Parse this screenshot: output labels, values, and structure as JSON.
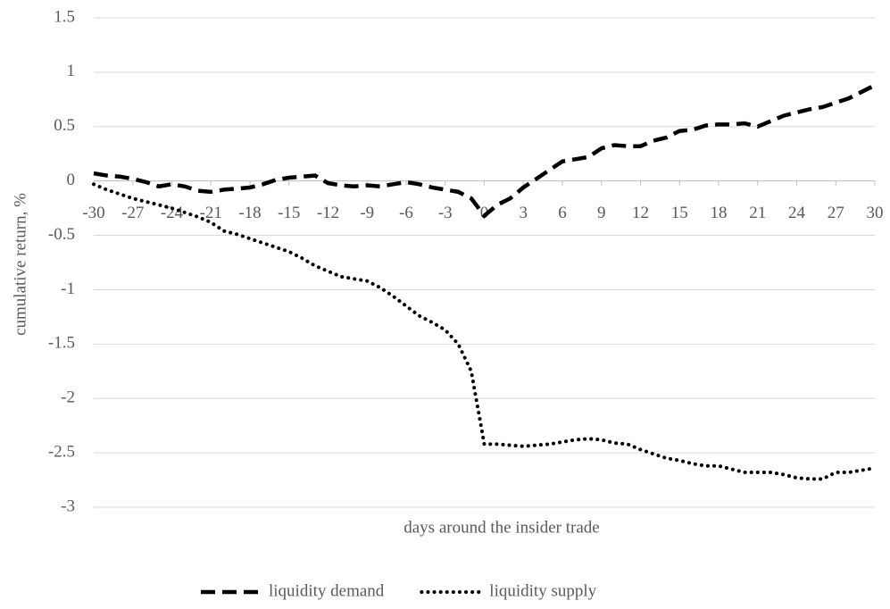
{
  "chart_data": {
    "type": "line",
    "y_label": "cumulative return, %",
    "x_label": "days around the insider trade",
    "x": [
      -30,
      -29,
      -28,
      -27,
      -26,
      -25,
      -24,
      -23,
      -22,
      -21,
      -20,
      -19,
      -18,
      -17,
      -16,
      -15,
      -14,
      -13,
      -12,
      -11,
      -10,
      -9,
      -8,
      -7,
      -6,
      -5,
      -4,
      -3,
      -2,
      -1,
      0,
      1,
      2,
      3,
      4,
      5,
      6,
      7,
      8,
      9,
      10,
      11,
      12,
      13,
      14,
      15,
      16,
      17,
      18,
      19,
      20,
      21,
      22,
      23,
      24,
      25,
      26,
      27,
      28,
      29,
      30
    ],
    "series": [
      {
        "name": "liquidity demand",
        "color": "#000000",
        "dash": "dashed",
        "values": [
          0.07,
          0.05,
          0.04,
          0.02,
          -0.01,
          -0.05,
          -0.03,
          -0.05,
          -0.09,
          -0.1,
          -0.08,
          -0.07,
          -0.06,
          -0.03,
          0.01,
          0.03,
          0.04,
          0.05,
          -0.02,
          -0.04,
          -0.05,
          -0.04,
          -0.05,
          -0.03,
          -0.01,
          -0.03,
          -0.06,
          -0.08,
          -0.1,
          -0.16,
          -0.32,
          -0.22,
          -0.16,
          -0.06,
          0.02,
          0.1,
          0.18,
          0.2,
          0.22,
          0.3,
          0.33,
          0.32,
          0.32,
          0.37,
          0.4,
          0.46,
          0.47,
          0.51,
          0.52,
          0.52,
          0.53,
          0.5,
          0.55,
          0.6,
          0.63,
          0.66,
          0.68,
          0.72,
          0.76,
          0.82,
          0.88
        ]
      },
      {
        "name": "liquidity supply",
        "color": "#000000",
        "dash": "dotted",
        "values": [
          -0.03,
          -0.08,
          -0.12,
          -0.16,
          -0.19,
          -0.22,
          -0.25,
          -0.29,
          -0.33,
          -0.38,
          -0.46,
          -0.49,
          -0.53,
          -0.57,
          -0.61,
          -0.65,
          -0.71,
          -0.78,
          -0.83,
          -0.88,
          -0.9,
          -0.92,
          -0.98,
          -1.06,
          -1.15,
          -1.24,
          -1.3,
          -1.37,
          -1.5,
          -1.75,
          -2.42,
          -2.42,
          -2.43,
          -2.44,
          -2.43,
          -2.42,
          -2.4,
          -2.38,
          -2.37,
          -2.38,
          -2.41,
          -2.42,
          -2.47,
          -2.51,
          -2.55,
          -2.57,
          -2.6,
          -2.62,
          -2.62,
          -2.65,
          -2.68,
          -2.68,
          -2.68,
          -2.7,
          -2.73,
          -2.74,
          -2.74,
          -2.68,
          -2.68,
          -2.66,
          -2.64
        ]
      }
    ],
    "xlim": [
      -30,
      30
    ],
    "xticks": [
      -30,
      -27,
      -24,
      -21,
      -18,
      -15,
      -12,
      -9,
      -6,
      -3,
      0,
      3,
      6,
      9,
      12,
      15,
      18,
      21,
      24,
      27,
      30
    ],
    "ylim": [
      -3,
      1.5
    ],
    "yticks": [
      -3,
      -2.5,
      -2,
      -1.5,
      -1,
      -0.5,
      0,
      0.5,
      1,
      1.5
    ],
    "grid": true,
    "legend": "bottom"
  }
}
